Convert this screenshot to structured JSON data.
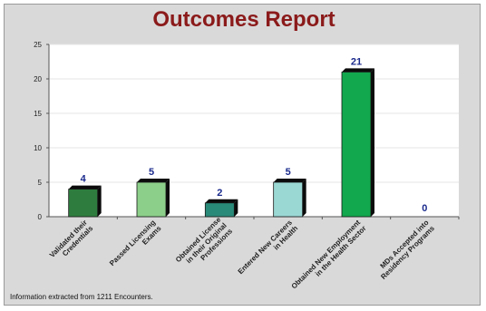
{
  "chart_data": {
    "type": "bar",
    "title": "Outcomes Report",
    "categories": [
      [
        "Validated their",
        "Credentials"
      ],
      [
        "Passed Licensing",
        "Exams"
      ],
      [
        "Obtained License",
        "in their Original",
        "Professions"
      ],
      [
        "Entered New Careers",
        "in Health"
      ],
      [
        "Obtained New Employment",
        "in the Health Sector"
      ],
      [
        "MDs Accepted into",
        "Residency Programs"
      ]
    ],
    "values": [
      4,
      5,
      2,
      5,
      21,
      0
    ],
    "data_labels": [
      "4",
      "5",
      "2",
      "5",
      "21",
      "0"
    ],
    "ylim": [
      0,
      25
    ],
    "yticks": [
      0,
      5,
      10,
      15,
      20,
      25
    ],
    "grid": true,
    "bar_colors": [
      "#2e7d3e",
      "#8ccf8a",
      "#2a8a7a",
      "#9ad8d4",
      "#12a84e",
      "#c8c8c8"
    ],
    "shadow_color": "#0b0b0b",
    "label_color": "#1a2a8c"
  },
  "footnote": "Information extracted from 1211 Encounters."
}
